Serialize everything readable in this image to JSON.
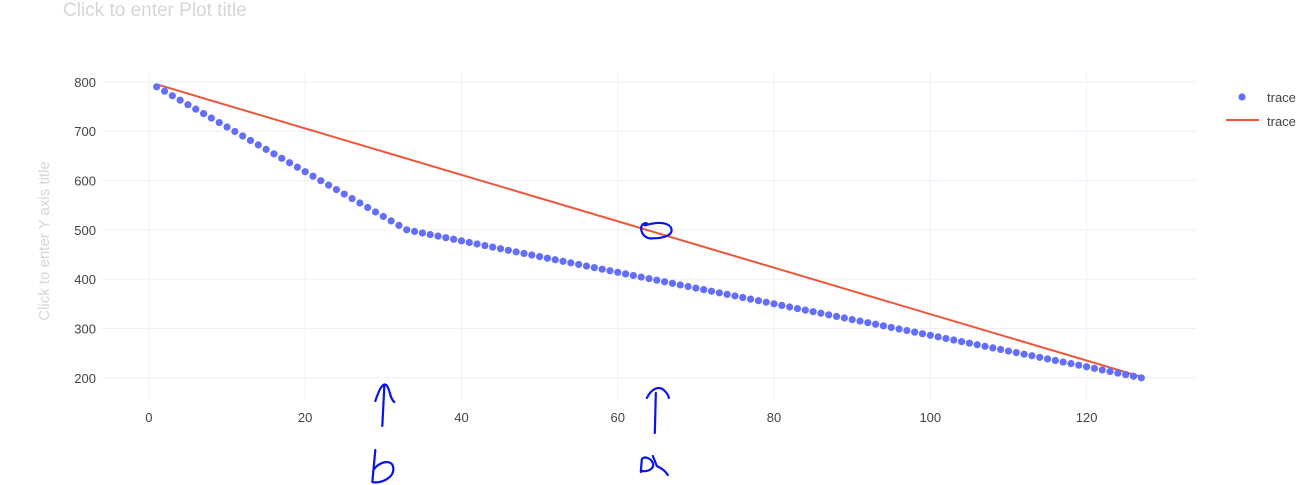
{
  "chart_data": {
    "type": "scatter",
    "title": "Click to enter Plot title",
    "xlabel": "",
    "ylabel": "Click to enter Y axis title",
    "xlim": [
      -6,
      134
    ],
    "ylim": [
      155,
      820
    ],
    "xticks": [
      0,
      20,
      40,
      60,
      80,
      100,
      120
    ],
    "yticks": [
      200,
      300,
      400,
      500,
      600,
      700,
      800
    ],
    "grid": true,
    "legend_position": "top-right",
    "colors": {
      "scatter": "#636efa",
      "line": "#ef553b",
      "grid": "#ebf0f8",
      "annotation": "#0a14e6"
    },
    "series": [
      {
        "name": "trace",
        "mode": "markers",
        "x_start": 1,
        "x_end": 127,
        "x_step": 1,
        "y_start": 790,
        "y_break": 500,
        "x_break": 33,
        "y_end": 200
      },
      {
        "name": "trace",
        "mode": "lines",
        "x": [
          1,
          127
        ],
        "y": [
          795,
          202
        ]
      }
    ],
    "annotations": [
      {
        "type": "circle",
        "x": 65,
        "y": 497
      },
      {
        "type": "arrow",
        "x": 30,
        "label": "b"
      },
      {
        "type": "arrow",
        "x": 65,
        "label": "a"
      }
    ]
  }
}
